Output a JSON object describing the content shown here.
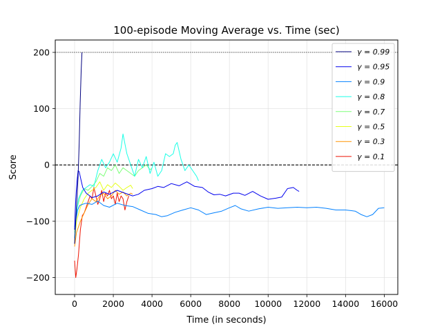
{
  "chart_data": {
    "type": "line",
    "title": "100-episode Moving Average vs. Time (sec)",
    "xlabel": "Time (in seconds)",
    "ylabel": "Score",
    "xlim": [
      -1000,
      16700
    ],
    "ylim": [
      -230,
      222
    ],
    "x_ticks": [
      0,
      2000,
      4000,
      6000,
      8000,
      10000,
      12000,
      14000,
      16000
    ],
    "y_ticks": [
      -200,
      -100,
      0,
      100,
      200
    ],
    "grid": true,
    "legend_position": "top-right",
    "reference_lines": [
      {
        "y": 200,
        "style": "dotted"
      },
      {
        "y": 0,
        "style": "dashed"
      }
    ],
    "series": [
      {
        "name": "γ = 0.99",
        "color": "#00007f",
        "points": [
          [
            0,
            -140
          ],
          [
            60,
            -100
          ],
          [
            120,
            -60
          ],
          [
            180,
            -20
          ],
          [
            240,
            40
          ],
          [
            290,
            110
          ],
          [
            340,
            170
          ],
          [
            380,
            200
          ]
        ]
      },
      {
        "name": "γ = 0.95",
        "color": "#0000ee",
        "points": [
          [
            0,
            -115
          ],
          [
            60,
            -60
          ],
          [
            120,
            -30
          ],
          [
            180,
            -10
          ],
          [
            240,
            -12
          ],
          [
            320,
            -25
          ],
          [
            420,
            -40
          ],
          [
            600,
            -50
          ],
          [
            900,
            -58
          ],
          [
            1200,
            -55
          ],
          [
            1500,
            -48
          ],
          [
            1800,
            -52
          ],
          [
            2200,
            -45
          ],
          [
            2600,
            -50
          ],
          [
            3000,
            -55
          ],
          [
            3300,
            -52
          ],
          [
            3600,
            -45
          ],
          [
            4000,
            -42
          ],
          [
            4300,
            -38
          ],
          [
            4600,
            -40
          ],
          [
            5000,
            -33
          ],
          [
            5400,
            -37
          ],
          [
            5800,
            -30
          ],
          [
            6200,
            -38
          ],
          [
            6600,
            -40
          ],
          [
            6900,
            -48
          ],
          [
            7200,
            -53
          ],
          [
            7500,
            -52
          ],
          [
            7800,
            -55
          ],
          [
            8200,
            -50
          ],
          [
            8500,
            -50
          ],
          [
            8800,
            -54
          ],
          [
            9200,
            -47
          ],
          [
            9600,
            -55
          ],
          [
            10000,
            -61
          ],
          [
            10400,
            -59
          ],
          [
            10700,
            -57
          ],
          [
            11000,
            -42
          ],
          [
            11300,
            -40
          ],
          [
            11500,
            -45
          ],
          [
            11600,
            -47
          ]
        ]
      },
      {
        "name": "γ = 0.9",
        "color": "#0080ff",
        "points": [
          [
            0,
            -110
          ],
          [
            80,
            -95
          ],
          [
            160,
            -80
          ],
          [
            260,
            -72
          ],
          [
            400,
            -70
          ],
          [
            600,
            -68
          ],
          [
            900,
            -70
          ],
          [
            1200,
            -64
          ],
          [
            1500,
            -72
          ],
          [
            1800,
            -75
          ],
          [
            2200,
            -68
          ],
          [
            2600,
            -72
          ],
          [
            3000,
            -74
          ],
          [
            3400,
            -80
          ],
          [
            3800,
            -86
          ],
          [
            4200,
            -88
          ],
          [
            4500,
            -92
          ],
          [
            4800,
            -90
          ],
          [
            5200,
            -84
          ],
          [
            5600,
            -80
          ],
          [
            6000,
            -76
          ],
          [
            6400,
            -80
          ],
          [
            6800,
            -88
          ],
          [
            7200,
            -85
          ],
          [
            7600,
            -82
          ],
          [
            8000,
            -76
          ],
          [
            8300,
            -72
          ],
          [
            8600,
            -78
          ],
          [
            9000,
            -82
          ],
          [
            9500,
            -78
          ],
          [
            10000,
            -75
          ],
          [
            10500,
            -77
          ],
          [
            11000,
            -76
          ],
          [
            11500,
            -75
          ],
          [
            12000,
            -76
          ],
          [
            12500,
            -75
          ],
          [
            13000,
            -77
          ],
          [
            13500,
            -80
          ],
          [
            14000,
            -80
          ],
          [
            14500,
            -82
          ],
          [
            14800,
            -88
          ],
          [
            15100,
            -92
          ],
          [
            15400,
            -88
          ],
          [
            15700,
            -77
          ],
          [
            16000,
            -76
          ]
        ]
      },
      {
        "name": "γ = 0.8",
        "color": "#19ffe6",
        "points": [
          [
            0,
            -130
          ],
          [
            80,
            -90
          ],
          [
            200,
            -60
          ],
          [
            400,
            -45
          ],
          [
            600,
            -40
          ],
          [
            800,
            -35
          ],
          [
            1000,
            -38
          ],
          [
            1200,
            -10
          ],
          [
            1400,
            10
          ],
          [
            1600,
            -5
          ],
          [
            1800,
            5
          ],
          [
            2000,
            20
          ],
          [
            2200,
            5
          ],
          [
            2400,
            30
          ],
          [
            2500,
            55
          ],
          [
            2700,
            20
          ],
          [
            2900,
            0
          ],
          [
            3100,
            -20
          ],
          [
            3300,
            10
          ],
          [
            3500,
            -5
          ],
          [
            3700,
            15
          ],
          [
            3900,
            -15
          ],
          [
            4100,
            5
          ],
          [
            4300,
            -20
          ],
          [
            4500,
            -10
          ],
          [
            4700,
            20
          ],
          [
            4900,
            15
          ],
          [
            5100,
            20
          ],
          [
            5200,
            35
          ],
          [
            5300,
            40
          ],
          [
            5500,
            10
          ],
          [
            5700,
            -10
          ],
          [
            5900,
            0
          ],
          [
            6100,
            -10
          ],
          [
            6300,
            -20
          ],
          [
            6400,
            -28
          ]
        ]
      },
      {
        "name": "γ = 0.7",
        "color": "#7cff79",
        "points": [
          [
            0,
            -120
          ],
          [
            100,
            -80
          ],
          [
            300,
            -55
          ],
          [
            500,
            -42
          ],
          [
            700,
            -45
          ],
          [
            900,
            -38
          ],
          [
            1100,
            -30
          ],
          [
            1300,
            -15
          ],
          [
            1500,
            -20
          ],
          [
            1700,
            -5
          ],
          [
            1900,
            -10
          ],
          [
            2100,
            0
          ],
          [
            2300,
            -15
          ],
          [
            2500,
            -5
          ],
          [
            2700,
            -10
          ],
          [
            2900,
            -15
          ],
          [
            3100,
            -20
          ],
          [
            3300,
            -10
          ],
          [
            3500,
            -5
          ],
          [
            3700,
            0
          ],
          [
            3900,
            -8
          ],
          [
            4000,
            -6
          ]
        ]
      },
      {
        "name": "γ = 0.5",
        "color": "#e6ff19",
        "points": [
          [
            0,
            -135
          ],
          [
            100,
            -100
          ],
          [
            300,
            -75
          ],
          [
            500,
            -60
          ],
          [
            700,
            -50
          ],
          [
            900,
            -45
          ],
          [
            1100,
            -40
          ],
          [
            1300,
            -30
          ],
          [
            1500,
            -45
          ],
          [
            1700,
            -35
          ],
          [
            1900,
            -40
          ],
          [
            2100,
            -32
          ],
          [
            2300,
            -38
          ],
          [
            2500,
            -45
          ],
          [
            2700,
            -40
          ],
          [
            2900,
            -36
          ],
          [
            3000,
            -42
          ]
        ]
      },
      {
        "name": "γ = 0.3",
        "color": "#ff9400",
        "points": [
          [
            0,
            -145
          ],
          [
            100,
            -120
          ],
          [
            300,
            -100
          ],
          [
            500,
            -85
          ],
          [
            700,
            -70
          ],
          [
            900,
            -60
          ],
          [
            1100,
            -65
          ],
          [
            1300,
            -55
          ],
          [
            1500,
            -50
          ],
          [
            1700,
            -60
          ],
          [
            1900,
            -55
          ],
          [
            2100,
            -45
          ],
          [
            2300,
            -52
          ],
          [
            2500,
            -48
          ],
          [
            2700,
            -55
          ],
          [
            2900,
            -50
          ],
          [
            3000,
            -52
          ]
        ]
      },
      {
        "name": "γ = 0.1",
        "color": "#ee1200",
        "points": [
          [
            0,
            -170
          ],
          [
            60,
            -200
          ],
          [
            120,
            -185
          ],
          [
            200,
            -160
          ],
          [
            300,
            -115
          ],
          [
            400,
            -90
          ],
          [
            500,
            -85
          ],
          [
            600,
            -75
          ],
          [
            700,
            -65
          ],
          [
            800,
            -55
          ],
          [
            900,
            -60
          ],
          [
            1000,
            -40
          ],
          [
            1100,
            -55
          ],
          [
            1200,
            -70
          ],
          [
            1300,
            -60
          ],
          [
            1400,
            -45
          ],
          [
            1500,
            -65
          ],
          [
            1600,
            -50
          ],
          [
            1700,
            -55
          ],
          [
            1800,
            -45
          ],
          [
            1900,
            -60
          ],
          [
            2000,
            -55
          ],
          [
            2100,
            -70
          ],
          [
            2200,
            -50
          ],
          [
            2300,
            -65
          ],
          [
            2400,
            -55
          ],
          [
            2500,
            -60
          ],
          [
            2600,
            -80
          ],
          [
            2700,
            -65
          ],
          [
            2800,
            -55
          ]
        ]
      }
    ]
  }
}
